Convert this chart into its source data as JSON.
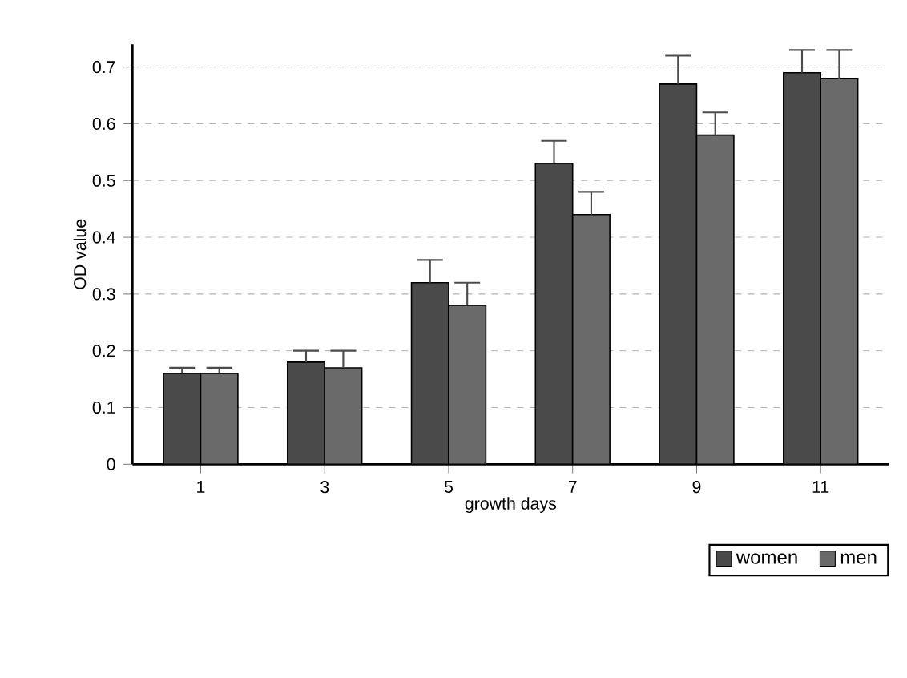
{
  "chart_data": {
    "type": "bar",
    "xlabel": "growth days",
    "ylabel": "OD value",
    "categories": [
      "1",
      "3",
      "5",
      "7",
      "9",
      "11"
    ],
    "series": [
      {
        "name": "women",
        "color": "#4a4a4a",
        "values": [
          0.16,
          0.18,
          0.32,
          0.53,
          0.67,
          0.69
        ],
        "errors": [
          [
            0.16,
            0.17
          ],
          [
            0.18,
            0.2
          ],
          [
            0.32,
            0.36
          ],
          [
            0.53,
            0.57
          ],
          [
            0.67,
            0.72
          ],
          [
            0.69,
            0.73
          ]
        ]
      },
      {
        "name": "men",
        "color": "#6a6a6a",
        "values": [
          0.16,
          0.17,
          0.28,
          0.44,
          0.58,
          0.68
        ],
        "errors": [
          [
            0.16,
            0.17
          ],
          [
            0.17,
            0.2
          ],
          [
            0.28,
            0.32
          ],
          [
            0.44,
            0.48
          ],
          [
            0.58,
            0.62
          ],
          [
            0.68,
            0.73
          ]
        ]
      }
    ],
    "ylim": [
      0,
      0.74
    ],
    "yticks": [
      0,
      0.1,
      0.2,
      0.3,
      0.4,
      0.5,
      0.6,
      0.7
    ],
    "grid": "y",
    "legend": "bottom right"
  }
}
